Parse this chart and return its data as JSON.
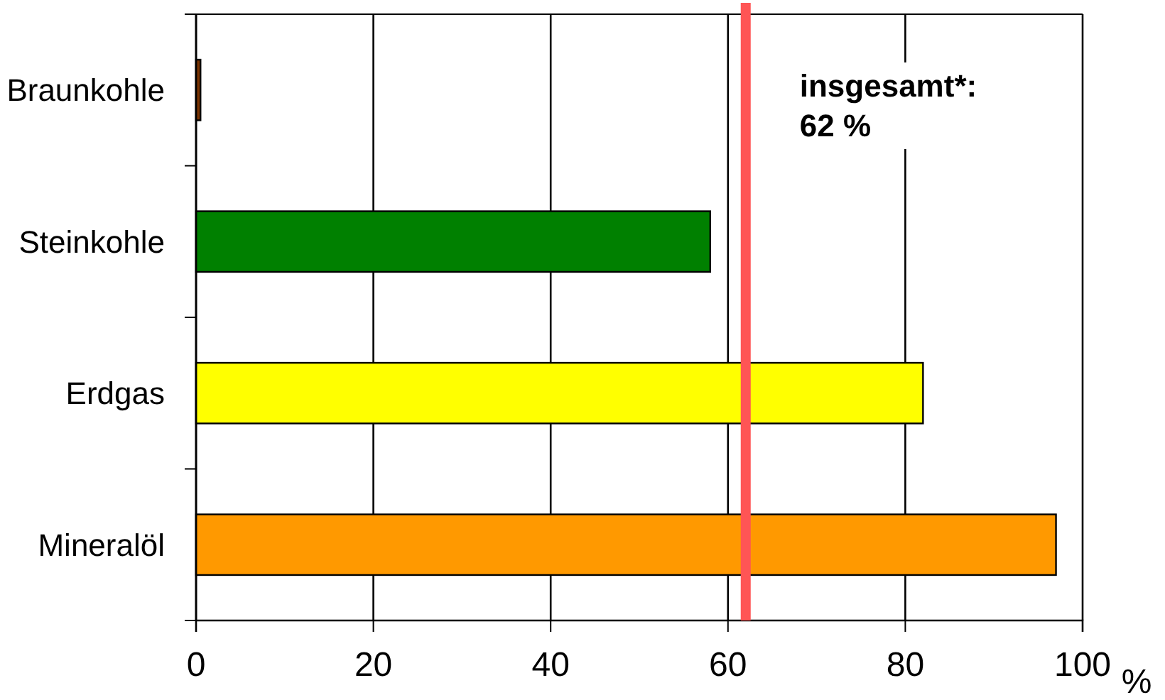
{
  "chart_data": {
    "type": "bar",
    "orientation": "horizontal",
    "categories": [
      "Braunkohle",
      "Steinkohle",
      "Erdgas",
      "Mineralöl"
    ],
    "values": [
      0.5,
      58,
      82,
      97
    ],
    "colors": [
      "#7a3300",
      "#008000",
      "#ffff00",
      "#ff9900"
    ],
    "xlim": [
      0,
      100
    ],
    "xticks": [
      0,
      20,
      40,
      60,
      80,
      100
    ],
    "xlabel": "%",
    "grid": "x",
    "ref_lines": [
      {
        "axis": "x",
        "value": 62,
        "label": "insgesamt*:\n62 %",
        "color": "#ff5555"
      }
    ]
  }
}
